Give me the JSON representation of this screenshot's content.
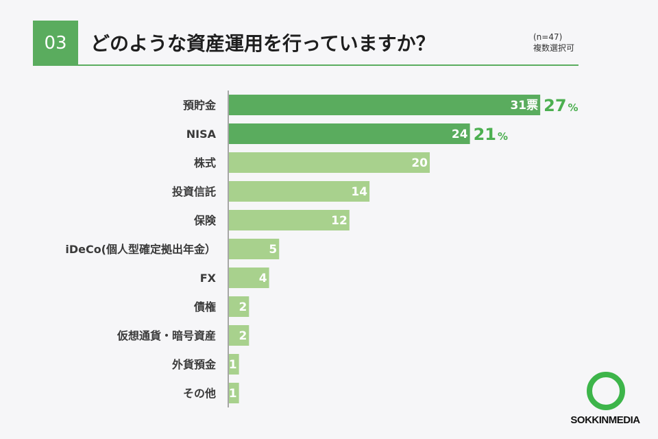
{
  "header": {
    "number": "03",
    "title": "どのような資産運用を行っていますか？",
    "sample": "(n=47)",
    "note": "複数選択可"
  },
  "logo": {
    "text": "SOKKINMEDIA",
    "ring_color": "#3db54a"
  },
  "colors": {
    "dark_bar": "#5aac5e",
    "light_bar": "#a8d18d",
    "accent": "#4caf50"
  },
  "chart_data": {
    "type": "bar",
    "orientation": "horizontal",
    "categories": [
      "預貯金",
      "NISA",
      "株式",
      "投資信託",
      "保険",
      "iDeCo(個人型確定拠出年金）",
      "FX",
      "債権",
      "仮想通貨・暗号資産",
      "外貨預金",
      "その他"
    ],
    "values": [
      31,
      24,
      20,
      14,
      12,
      5,
      4,
      2,
      2,
      1,
      1
    ],
    "value_labels": [
      "31票",
      "24",
      "20",
      "14",
      "12",
      "5",
      "4",
      "2",
      "2",
      "1",
      "1"
    ],
    "percent_labels": [
      {
        "index": 0,
        "number": "27",
        "sign": "%"
      },
      {
        "index": 1,
        "number": "21",
        "sign": "%"
      }
    ],
    "highlight_count": 2,
    "xlim": [
      0,
      31
    ],
    "grid": false,
    "legend": "none"
  }
}
